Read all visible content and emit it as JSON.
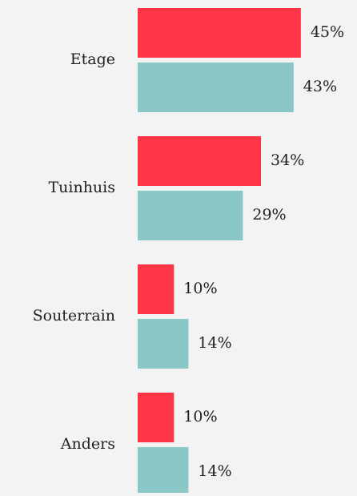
{
  "chart_data": {
    "type": "bar",
    "orientation": "horizontal",
    "categories": [
      "Etage",
      "Tuinhuis",
      "Souterrain",
      "Anders"
    ],
    "series": [
      {
        "color": "#ff3446",
        "values": [
          45,
          34,
          10,
          10
        ],
        "value_labels": [
          "45%",
          "34%",
          "10%",
          "10%"
        ]
      },
      {
        "color": "#8cc7c7",
        "values": [
          43,
          29,
          14,
          14
        ],
        "value_labels": [
          "43%",
          "29%",
          "14%",
          "14%"
        ]
      }
    ]
  }
}
